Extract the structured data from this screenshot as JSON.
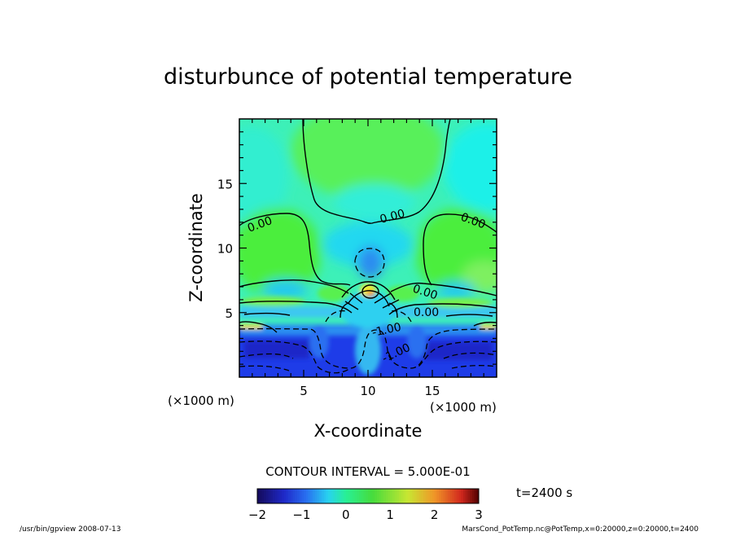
{
  "chart_data": {
    "type": "heatmap",
    "title": "disturbunce of potential temperature",
    "xlabel": "X-coordinate",
    "ylabel": "Z-coordinate",
    "xunit": "(×1000 m)",
    "yunit": "(×1000 m)",
    "xlim": [
      0,
      20
    ],
    "ylim": [
      0,
      20
    ],
    "xticks": [
      5,
      10,
      15
    ],
    "yticks": [
      5,
      10,
      15
    ],
    "contour_labels": [
      "0.00",
      "0.00",
      "0.00",
      "0.00",
      "0.00",
      "-1.00",
      "-1.00"
    ],
    "contour_interval_text": "CONTOUR INTERVAL = 5.000E-01",
    "colorbar": {
      "range": [
        -2,
        3
      ],
      "ticks": [
        -2,
        -1,
        0,
        1,
        2,
        3
      ]
    },
    "time_text": "t=2400 s",
    "footer_left": "/usr/bin/gpview   2008-07-13",
    "footer_right": "MarsCond_PotTemp.nc@PotTemp,x=0:20000,z=0:20000,t=2400"
  }
}
